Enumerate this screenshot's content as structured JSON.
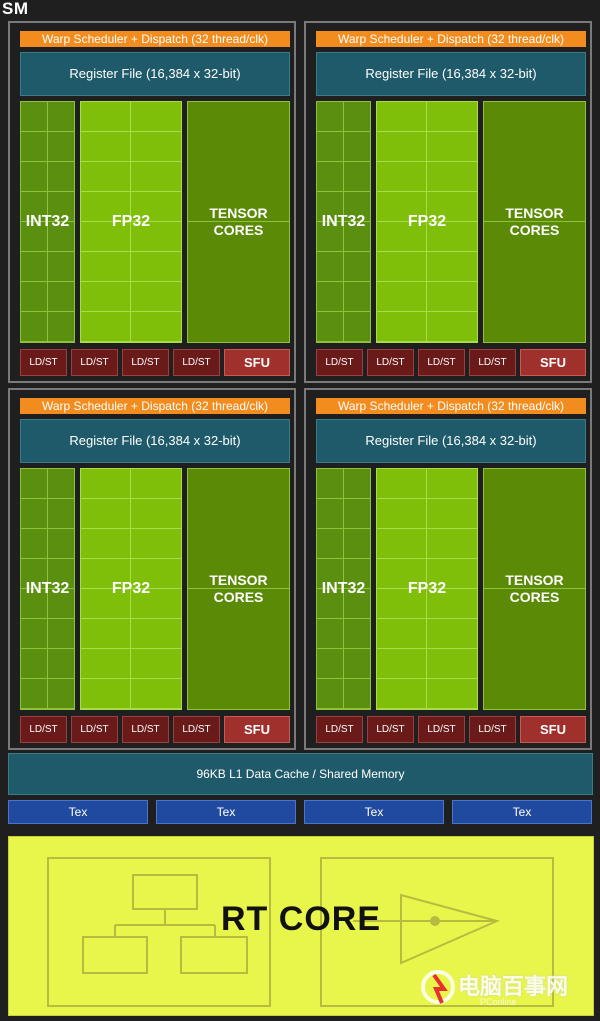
{
  "title": "SM",
  "partitions": [
    {
      "warp": "Warp Scheduler + Dispatch (32 thread/clk)",
      "register_file": "Register File (16,384 x 32-bit)",
      "int32": "INT32",
      "fp32": "FP32",
      "tensor_line1": "TENSOR",
      "tensor_line2": "CORES",
      "ldst": "LD/ST",
      "sfu": "SFU"
    },
    {
      "warp": "Warp Scheduler + Dispatch (32 thread/clk)",
      "register_file": "Register File (16,384 x 32-bit)",
      "int32": "INT32",
      "fp32": "FP32",
      "tensor_line1": "TENSOR",
      "tensor_line2": "CORES",
      "ldst": "LD/ST",
      "sfu": "SFU"
    },
    {
      "warp": "Warp Scheduler + Dispatch (32 thread/clk)",
      "register_file": "Register File (16,384 x 32-bit)",
      "int32": "INT32",
      "fp32": "FP32",
      "tensor_line1": "TENSOR",
      "tensor_line2": "CORES",
      "ldst": "LD/ST",
      "sfu": "SFU"
    },
    {
      "warp": "Warp Scheduler + Dispatch (32 thread/clk)",
      "register_file": "Register File (16,384 x 32-bit)",
      "int32": "INT32",
      "fp32": "FP32",
      "tensor_line1": "TENSOR",
      "tensor_line2": "CORES",
      "ldst": "LD/ST",
      "sfu": "SFU"
    }
  ],
  "l1_cache": "96KB L1 Data Cache / Shared Memory",
  "tex_units": [
    "Tex",
    "Tex",
    "Tex",
    "Tex"
  ],
  "rt_core": "RT CORE",
  "watermark": {
    "text": "电脑百事网",
    "sub": "PConline"
  },
  "colors": {
    "warp": "#f28c1e",
    "register": "#1f5a6a",
    "int32": "#5a8f0f",
    "fp32": "#7fbf0a",
    "tensor": "#5b8b06",
    "ldst": "#6b1a1a",
    "sfu": "#a0302c",
    "tex": "#1f4aa0",
    "rt": "#e8f54a"
  }
}
